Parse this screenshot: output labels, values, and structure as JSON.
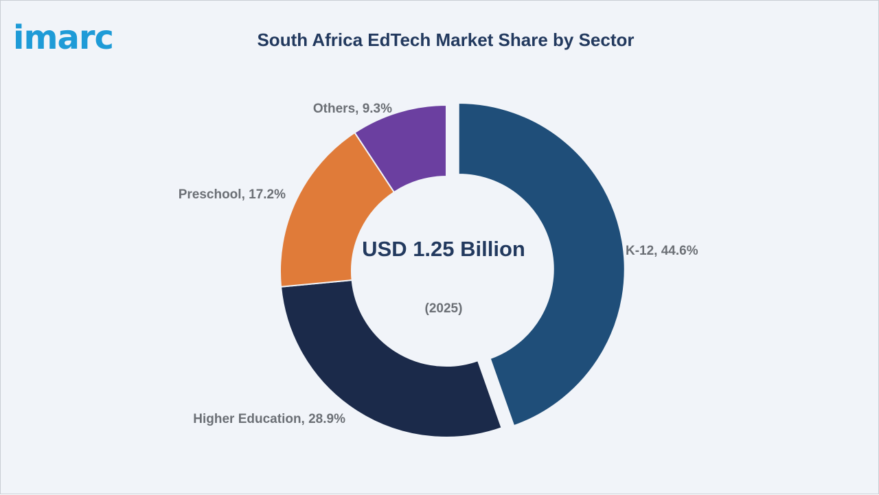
{
  "brand": {
    "logo_text": "imarc",
    "logo_color": "#1e9bd7"
  },
  "chart_data": {
    "type": "pie",
    "title": "South Africa EdTech Market Share by Sector",
    "center_value": "USD 1.25 Billion",
    "center_year": "(2025)",
    "slices": [
      {
        "label": "K-12",
        "value": 44.6,
        "display": "K-12, 44.6%",
        "color": "#1f4e79",
        "exploded": true
      },
      {
        "label": "Higher Education",
        "value": 28.9,
        "display": "Higher Education, 28.9%",
        "color": "#1b2a4a",
        "exploded": false
      },
      {
        "label": "Preschool",
        "value": 17.2,
        "display": "Preschool, 17.2%",
        "color": "#e07b39",
        "exploded": false
      },
      {
        "label": "Others",
        "value": 9.3,
        "display": "Others, 9.3%",
        "color": "#6b3fa0",
        "exploded": false
      }
    ]
  }
}
